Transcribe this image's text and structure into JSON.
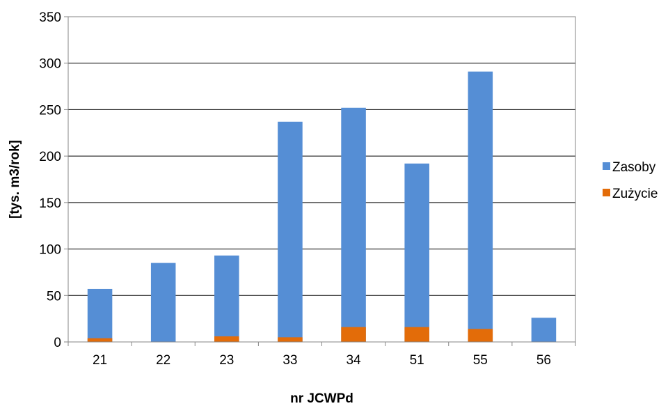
{
  "chart_data": {
    "type": "bar",
    "stacked": true,
    "title": "",
    "xlabel": "nr JCWPd",
    "ylabel": "[tys. m3/rok]",
    "categories": [
      "21",
      "22",
      "23",
      "33",
      "34",
      "51",
      "55",
      "56"
    ],
    "series": [
      {
        "name": "Zasoby",
        "color": "#558ED5",
        "values": [
          57,
          85,
          93,
          237,
          252,
          192,
          291,
          26
        ]
      },
      {
        "name": "Zużycie",
        "color": "#E36C09",
        "values": [
          4,
          0,
          6,
          5,
          16,
          16,
          14,
          0
        ]
      }
    ],
    "ylim": [
      0,
      350
    ],
    "yticks": [
      "0",
      "50",
      "100",
      "150",
      "200",
      "250",
      "300",
      "350"
    ],
    "grid": true,
    "legend_position": "right",
    "overlay": true
  }
}
